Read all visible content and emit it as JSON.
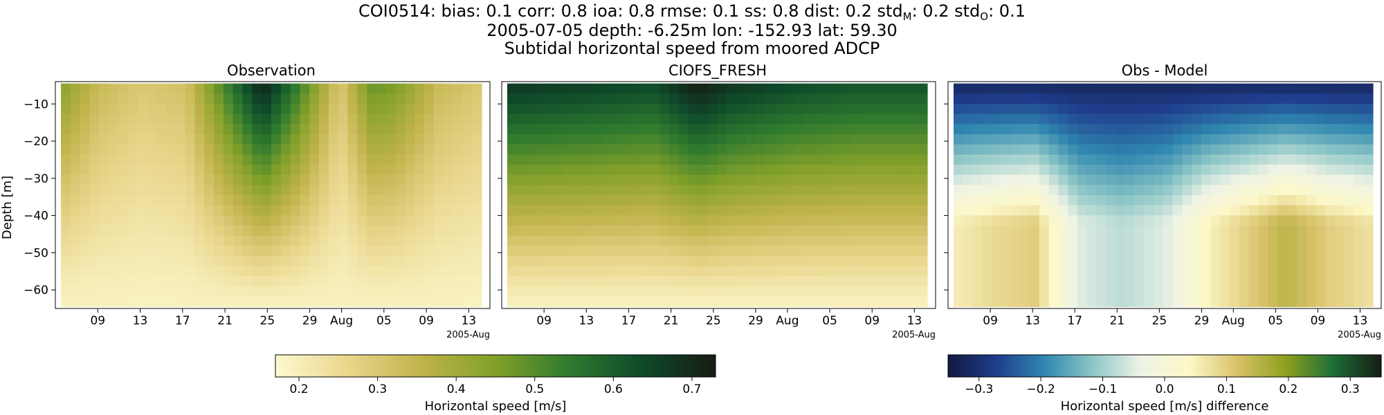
{
  "figure": {
    "title_lines": [
      "COI0514: bias: 0.1  corr: 0.8  ioa: 0.8  rmse: 0.1  ss: 0.8  dist: 0.2  std",
      "2005-07-05 depth: -6.25m lon: -152.93 lat: 59.30",
      "Subtidal horizontal speed from moored ADCP"
    ],
    "std_model_sub": "M",
    "std_model_val": ": 0.2  std",
    "std_obs_sub": "O",
    "std_obs_val": ": 0.1"
  },
  "chart_data": [
    {
      "type": "heatmap",
      "title": "Observation",
      "ylabel": "Depth [m]",
      "xlabel": "",
      "x_range": [
        "2005-07-05",
        "2005-08-15"
      ],
      "y_range": [
        -65,
        -4
      ],
      "x_ticks": [
        "09",
        "13",
        "17",
        "21",
        "25",
        "29",
        "Aug",
        "05",
        "09",
        "13"
      ],
      "x_offset_label": "2005-Aug",
      "y_ticks": [
        -10,
        -20,
        -30,
        -40,
        -50,
        -60
      ],
      "depth_profile_note": "speed decreases with depth",
      "surface_speed_by_date": [
        {
          "date": "2005-07-05",
          "value": 0.46
        },
        {
          "date": "2005-07-09",
          "value": 0.34
        },
        {
          "date": "2005-07-13",
          "value": 0.3
        },
        {
          "date": "2005-07-17",
          "value": 0.32
        },
        {
          "date": "2005-07-21",
          "value": 0.55
        },
        {
          "date": "2005-07-24",
          "value": 0.72
        },
        {
          "date": "2005-07-27",
          "value": 0.55
        },
        {
          "date": "2005-07-31",
          "value": 0.3
        },
        {
          "date": "2005-08-03",
          "value": 0.48
        },
        {
          "date": "2005-08-05",
          "value": 0.46
        },
        {
          "date": "2005-08-09",
          "value": 0.34
        },
        {
          "date": "2005-08-13",
          "value": 0.3
        }
      ]
    },
    {
      "type": "heatmap",
      "title": "CIOFS_FRESH",
      "x_range": [
        "2005-07-05",
        "2005-08-15"
      ],
      "y_range": [
        -65,
        -4
      ],
      "x_ticks": [
        "09",
        "13",
        "17",
        "21",
        "25",
        "29",
        "Aug",
        "05",
        "09",
        "13"
      ],
      "x_offset_label": "2005-Aug",
      "depth_profile_note": "speed decreases with depth",
      "surface_speed_by_date": [
        {
          "date": "2005-07-05",
          "value": 0.68
        },
        {
          "date": "2005-07-13",
          "value": 0.66
        },
        {
          "date": "2005-07-19",
          "value": 0.64
        },
        {
          "date": "2005-07-23",
          "value": 0.73
        },
        {
          "date": "2005-07-26",
          "value": 0.68
        },
        {
          "date": "2005-08-01",
          "value": 0.64
        },
        {
          "date": "2005-08-07",
          "value": 0.62
        },
        {
          "date": "2005-08-13",
          "value": 0.62
        }
      ]
    },
    {
      "type": "heatmap",
      "title": "Obs - Model",
      "x_range": [
        "2005-07-05",
        "2005-08-15"
      ],
      "y_range": [
        -65,
        -4
      ],
      "x_ticks": [
        "09",
        "13",
        "17",
        "21",
        "25",
        "29",
        "Aug",
        "05",
        "09",
        "13"
      ],
      "x_offset_label": "2005-Aug",
      "surface_difference": -0.32,
      "bottom_difference_by_date": [
        {
          "date": "2005-07-05",
          "value": 0.05
        },
        {
          "date": "2005-07-09",
          "value": 0.08
        },
        {
          "date": "2005-07-13",
          "value": 0.1
        },
        {
          "date": "2005-07-17",
          "value": -0.05
        },
        {
          "date": "2005-07-21",
          "value": -0.08
        },
        {
          "date": "2005-07-25",
          "value": -0.05
        },
        {
          "date": "2005-07-29",
          "value": 0.05
        },
        {
          "date": "2005-08-03",
          "value": 0.12
        },
        {
          "date": "2005-08-05",
          "value": 0.15
        },
        {
          "date": "2005-08-09",
          "value": 0.1
        },
        {
          "date": "2005-08-13",
          "value": 0.07
        }
      ]
    }
  ],
  "colorbars": [
    {
      "label": "Horizontal speed [m/s]",
      "range": [
        0.17,
        0.73
      ],
      "ticks": [
        "0.2",
        "0.3",
        "0.4",
        "0.5",
        "0.6",
        "0.7"
      ],
      "tick_values": [
        0.2,
        0.3,
        0.4,
        0.5,
        0.6,
        0.7
      ],
      "colors": [
        "#fdf9cf",
        "#e9d68c",
        "#bfb34a",
        "#82a02a",
        "#2e7a2e",
        "#0e4a2a",
        "#171b13"
      ]
    },
    {
      "label": "Horizontal speed [m/s] difference",
      "range": [
        -0.35,
        0.35
      ],
      "ticks": [
        "−0.3",
        "−0.2",
        "−0.1",
        "0.0",
        "0.1",
        "0.2",
        "0.3"
      ],
      "tick_values": [
        -0.3,
        -0.2,
        -0.1,
        0.0,
        0.1,
        0.2,
        0.3
      ],
      "colors": [
        "#12193f",
        "#1f3d8c",
        "#2f86b0",
        "#8cc6c6",
        "#eef3e6",
        "#fdf8c8",
        "#d9c26a",
        "#8fa11e",
        "#1d6e36",
        "#151d15"
      ]
    }
  ]
}
